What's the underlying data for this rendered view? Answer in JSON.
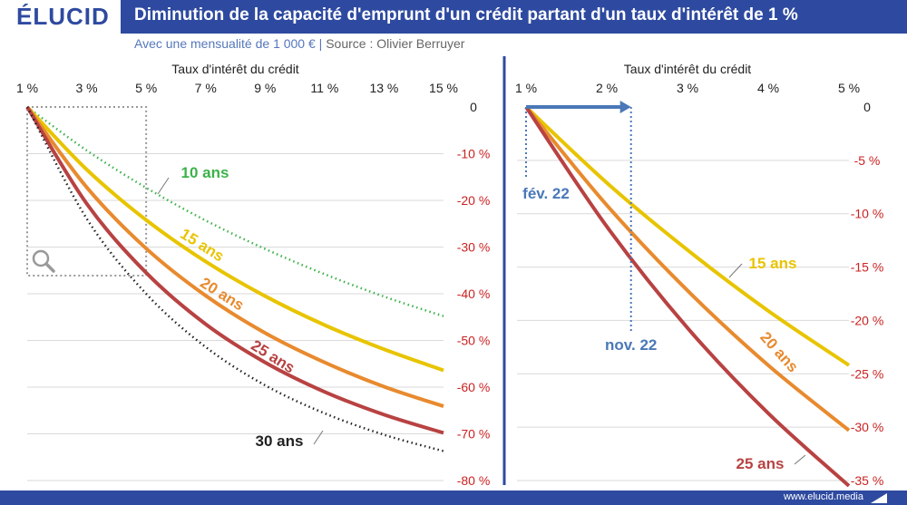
{
  "header": {
    "logo": "ÉLUCID",
    "title": "Diminution de la capacité d'emprunt d'un crédit partant d'un taux d'intérêt de 1 %",
    "subtitle": "Avec une mensualité de 1 000 €",
    "separator": "|",
    "source": "Source : Olivier Berruyer"
  },
  "footer": {
    "url": "www.elucid.media"
  },
  "colors": {
    "brand": "#2e4aa0",
    "10 ans": "#3cb24a",
    "15 ans": "#e8c400",
    "20 ans": "#e88a2e",
    "25 ans": "#b84242",
    "30 ans": "#222222",
    "annotation": "#4a78b8",
    "negative_tick": "#cc2222"
  },
  "chart_data": [
    {
      "type": "line",
      "xlabel": "Taux d'intérêt du crédit",
      "xlim": [
        1,
        15
      ],
      "ylim": [
        -80,
        0
      ],
      "x_ticks": [
        "1 %",
        "3 %",
        "5 %",
        "7 %",
        "9 %",
        "11 %",
        "13 %",
        "15 %"
      ],
      "x_tick_values": [
        1,
        3,
        5,
        7,
        9,
        11,
        13,
        15
      ],
      "y_ticks": [
        "0",
        "-10 %",
        "-20 %",
        "-30 %",
        "-40 %",
        "-50 %",
        "-60 %",
        "-70 %",
        "-80 %"
      ],
      "y_tick_values": [
        0,
        -10,
        -20,
        -30,
        -40,
        -50,
        -60,
        -70,
        -80
      ],
      "grid": "horizontal",
      "zoom_box": {
        "x_range": [
          1,
          5
        ],
        "note": "zoom area shown in right panel"
      },
      "series": [
        {
          "name": "10 ans",
          "years": 10,
          "style": "dotted",
          "x": [
            1,
            3,
            5,
            7,
            9,
            11,
            13,
            15
          ],
          "values": [
            0,
            -9.3,
            -17.3,
            -24.3,
            -30.4,
            -35.8,
            -40.6,
            -44.8
          ]
        },
        {
          "name": "15 ans",
          "years": 15,
          "style": "solid",
          "x": [
            1,
            3,
            5,
            7,
            9,
            11,
            13,
            15
          ],
          "values": [
            0,
            -13.4,
            -24.2,
            -33.1,
            -40.5,
            -46.7,
            -51.9,
            -56.4
          ]
        },
        {
          "name": "20 ans",
          "years": 20,
          "style": "solid",
          "x": [
            1,
            3,
            5,
            7,
            9,
            11,
            13,
            15
          ],
          "values": [
            0,
            -17.2,
            -30.3,
            -40.4,
            -48.4,
            -54.7,
            -59.9,
            -64.1
          ]
        },
        {
          "name": "25 ans",
          "years": 25,
          "style": "solid",
          "x": [
            1,
            3,
            5,
            7,
            9,
            11,
            13,
            15
          ],
          "values": [
            0,
            -20.7,
            -35.5,
            -46.5,
            -54.7,
            -61.0,
            -65.9,
            -69.8
          ]
        },
        {
          "name": "30 ans",
          "years": 30,
          "style": "dotted",
          "x": [
            1,
            3,
            5,
            7,
            9,
            11,
            13,
            15
          ],
          "values": [
            0,
            -23.9,
            -40.0,
            -51.4,
            -59.6,
            -65.6,
            -70.2,
            -73.7
          ]
        }
      ]
    },
    {
      "type": "line",
      "xlabel": "Taux d'intérêt du crédit",
      "xlim": [
        1,
        5
      ],
      "ylim": [
        -35,
        0
      ],
      "x_ticks": [
        "1 %",
        "2 %",
        "3 %",
        "4 %",
        "5 %"
      ],
      "x_tick_values": [
        1,
        2,
        3,
        4,
        5
      ],
      "y_ticks": [
        "0",
        "-5 %",
        "-10 %",
        "-15 %",
        "-20 %",
        "-25 %",
        "-30 %",
        "-35 %"
      ],
      "y_tick_values": [
        0,
        -5,
        -10,
        -15,
        -20,
        -25,
        -30,
        -35
      ],
      "grid": "horizontal",
      "series": [
        {
          "name": "15 ans",
          "years": 15,
          "x": [
            1,
            2,
            3,
            4,
            5
          ],
          "values": [
            0,
            -7.1,
            -13.4,
            -19.1,
            -24.2
          ]
        },
        {
          "name": "20 ans",
          "years": 20,
          "x": [
            1,
            2,
            3,
            4,
            5
          ],
          "values": [
            0,
            -9.2,
            -17.2,
            -24.2,
            -30.3
          ]
        },
        {
          "name": "25 ans",
          "years": 25,
          "x": [
            1,
            2,
            3,
            4,
            5
          ],
          "values": [
            0,
            -11.2,
            -20.7,
            -28.7,
            -35.5
          ]
        }
      ],
      "annotations": [
        {
          "label": "fév. 22",
          "x": 1
        },
        {
          "label": "nov. 22",
          "x": 2.3
        }
      ]
    }
  ]
}
